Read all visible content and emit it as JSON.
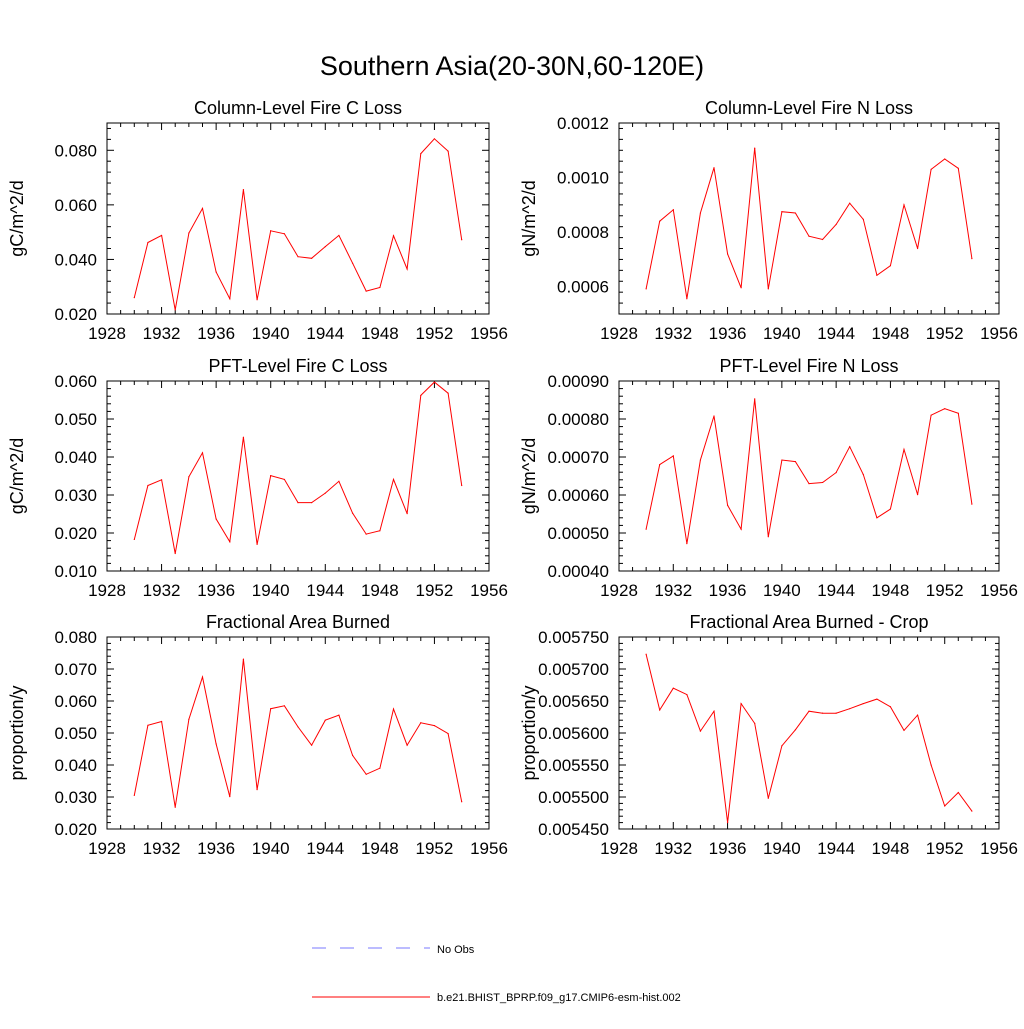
{
  "title": "Southern Asia(20-30N,60-120E)",
  "legend": [
    {
      "label": "No Obs",
      "color": "#7a7aff",
      "dash": true
    },
    {
      "label": "b.e21.BHIST_BPRP.f09_g17.CMIP6-esm-hist.002",
      "color": "#ff0000",
      "dash": false
    }
  ],
  "chart_data": [
    {
      "type": "line",
      "title": "Column-Level Fire C Loss",
      "ylabel": "gC/m^2/d",
      "xlim": [
        1928,
        1956
      ],
      "ylim": [
        0.02,
        0.09
      ],
      "xticks": [
        "1928",
        "1932",
        "1936",
        "1940",
        "1944",
        "1948",
        "1952",
        "1956"
      ],
      "yticks": [
        "0.020",
        "0.040",
        "0.060",
        "0.080"
      ],
      "series": [
        {
          "color": "#ff0000",
          "x": [
            1930,
            1931,
            1932,
            1933,
            1934,
            1935,
            1936,
            1937,
            1938,
            1939,
            1940,
            1941,
            1942,
            1943,
            1944,
            1945,
            1946,
            1947,
            1948,
            1949,
            1950,
            1951,
            1952,
            1953,
            1954
          ],
          "y": [
            0.026,
            0.0462,
            0.0488,
            0.0215,
            0.0497,
            0.0587,
            0.0354,
            0.0256,
            0.0656,
            0.0252,
            0.0505,
            0.0494,
            0.041,
            0.0404,
            0.0447,
            0.0488,
            0.0386,
            0.0284,
            0.0297,
            0.0487,
            0.0365,
            0.0788,
            0.0842,
            0.0797,
            0.0472
          ]
        }
      ]
    },
    {
      "type": "line",
      "title": "Column-Level Fire N Loss",
      "ylabel": "gN/m^2/d",
      "xlim": [
        1928,
        1956
      ],
      "ylim": [
        0.0005,
        0.0012
      ],
      "xticks": [
        "1928",
        "1932",
        "1936",
        "1940",
        "1944",
        "1948",
        "1952",
        "1956"
      ],
      "yticks": [
        "0.0006",
        "0.0008",
        "0.0010",
        "0.0012"
      ],
      "series": [
        {
          "color": "#ff0000",
          "x": [
            1930,
            1931,
            1932,
            1933,
            1934,
            1935,
            1936,
            1937,
            1938,
            1939,
            1940,
            1941,
            1942,
            1943,
            1944,
            1945,
            1946,
            1947,
            1948,
            1949,
            1950,
            1951,
            1952,
            1953,
            1954
          ],
          "y": [
            0.000592,
            0.00084,
            0.000882,
            0.000556,
            0.00087,
            0.001036,
            0.00072,
            0.000596,
            0.001108,
            0.000592,
            0.000875,
            0.00087,
            0.000785,
            0.000773,
            0.000828,
            0.000906,
            0.000847,
            0.000642,
            0.000677,
            0.0009,
            0.00074,
            0.00103,
            0.001068,
            0.001034,
            0.000703
          ]
        }
      ]
    },
    {
      "type": "line",
      "title": "PFT-Level Fire C Loss",
      "ylabel": "gC/m^2/d",
      "xlim": [
        1928,
        1956
      ],
      "ylim": [
        0.01,
        0.06
      ],
      "xticks": [
        "1928",
        "1932",
        "1936",
        "1940",
        "1944",
        "1948",
        "1952",
        "1956"
      ],
      "yticks": [
        "0.010",
        "0.020",
        "0.030",
        "0.040",
        "0.050",
        "0.060"
      ],
      "series": [
        {
          "color": "#ff0000",
          "x": [
            1930,
            1931,
            1932,
            1933,
            1934,
            1935,
            1936,
            1937,
            1938,
            1939,
            1940,
            1941,
            1942,
            1943,
            1944,
            1945,
            1946,
            1947,
            1948,
            1949,
            1950,
            1951,
            1952,
            1953,
            1954
          ],
          "y": [
            0.0183,
            0.0325,
            0.034,
            0.0146,
            0.0348,
            0.0411,
            0.0237,
            0.0177,
            0.0452,
            0.017,
            0.0351,
            0.0341,
            0.028,
            0.028,
            0.0305,
            0.0336,
            0.0252,
            0.0197,
            0.0206,
            0.0341,
            0.0251,
            0.0562,
            0.0597,
            0.0568,
            0.0325
          ]
        }
      ]
    },
    {
      "type": "line",
      "title": "PFT-Level Fire N Loss",
      "ylabel": "gN/m^2/d",
      "xlim": [
        1928,
        1956
      ],
      "ylim": [
        0.0004,
        0.0009
      ],
      "xticks": [
        "1928",
        "1932",
        "1936",
        "1940",
        "1944",
        "1948",
        "1952",
        "1956"
      ],
      "yticks": [
        "0.00040",
        "0.00050",
        "0.00060",
        "0.00070",
        "0.00080",
        "0.00090"
      ],
      "series": [
        {
          "color": "#ff0000",
          "x": [
            1930,
            1931,
            1932,
            1933,
            1934,
            1935,
            1936,
            1937,
            1938,
            1939,
            1940,
            1941,
            1942,
            1943,
            1944,
            1945,
            1946,
            1947,
            1948,
            1949,
            1950,
            1951,
            1952,
            1953,
            1954
          ],
          "y": [
            0.00051,
            0.00068,
            0.000703,
            0.000472,
            0.000692,
            0.000808,
            0.000573,
            0.00051,
            0.000853,
            0.00049,
            0.000692,
            0.000688,
            0.00063,
            0.000633,
            0.000659,
            0.000727,
            0.000654,
            0.00054,
            0.000563,
            0.00072,
            0.000601,
            0.00081,
            0.000827,
            0.000815,
            0.000576
          ]
        }
      ]
    },
    {
      "type": "line",
      "title": "Fractional Area Burned",
      "ylabel": "proportion/y",
      "xlim": [
        1928,
        1956
      ],
      "ylim": [
        0.02,
        0.08
      ],
      "xticks": [
        "1928",
        "1932",
        "1936",
        "1940",
        "1944",
        "1948",
        "1952",
        "1956"
      ],
      "yticks": [
        "0.020",
        "0.030",
        "0.040",
        "0.050",
        "0.060",
        "0.070",
        "0.080"
      ],
      "series": [
        {
          "color": "#ff0000",
          "x": [
            1930,
            1931,
            1932,
            1933,
            1934,
            1935,
            1936,
            1937,
            1938,
            1939,
            1940,
            1941,
            1942,
            1943,
            1944,
            1945,
            1946,
            1947,
            1948,
            1949,
            1950,
            1951,
            1952,
            1953,
            1954
          ],
          "y": [
            0.0305,
            0.0524,
            0.0536,
            0.0268,
            0.0543,
            0.0675,
            0.0466,
            0.0301,
            0.0731,
            0.0323,
            0.0576,
            0.0585,
            0.0519,
            0.0462,
            0.054,
            0.0556,
            0.043,
            0.0371,
            0.039,
            0.0575,
            0.0462,
            0.0532,
            0.0523,
            0.0498,
            0.0285
          ]
        }
      ]
    },
    {
      "type": "line",
      "title": "Fractional Area Burned - Crop",
      "ylabel": "proportion/y",
      "xlim": [
        1928,
        1956
      ],
      "ylim": [
        0.00545,
        0.00575
      ],
      "xticks": [
        "1928",
        "1932",
        "1936",
        "1940",
        "1944",
        "1948",
        "1952",
        "1956"
      ],
      "yticks": [
        "0.005450",
        "0.005500",
        "0.005550",
        "0.005600",
        "0.005650",
        "0.005700",
        "0.005750"
      ],
      "series": [
        {
          "color": "#ff0000",
          "x": [
            1930,
            1931,
            1932,
            1933,
            1934,
            1935,
            1936,
            1937,
            1938,
            1939,
            1940,
            1941,
            1942,
            1943,
            1944,
            1945,
            1946,
            1947,
            1948,
            1949,
            1950,
            1951,
            1952,
            1953,
            1954
          ],
          "y": [
            0.005723,
            0.005636,
            0.00567,
            0.00566,
            0.005603,
            0.005634,
            0.00546,
            0.005646,
            0.005615,
            0.005498,
            0.00558,
            0.005605,
            0.005634,
            0.005631,
            0.005631,
            0.005638,
            0.005646,
            0.005653,
            0.005641,
            0.005604,
            0.005628,
            0.00555,
            0.005486,
            0.005507,
            0.005478
          ]
        }
      ]
    }
  ]
}
